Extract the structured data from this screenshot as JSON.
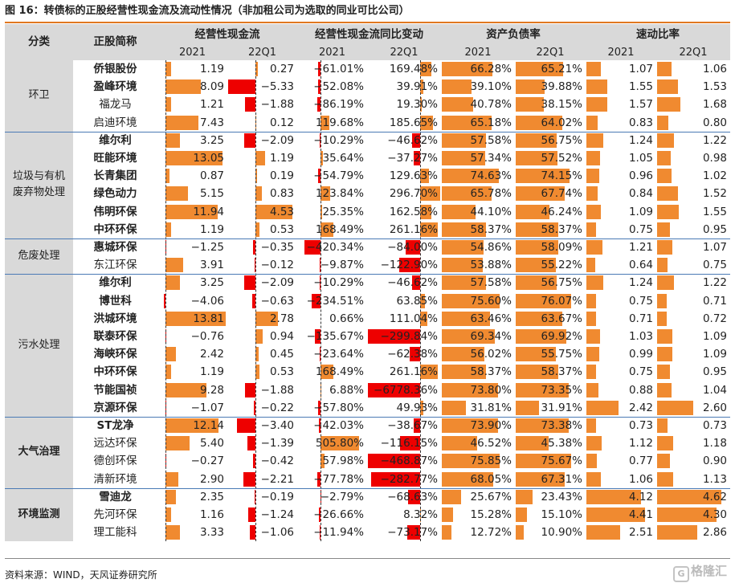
{
  "title": "图 16：转债标的正股经营性现金流及流动性情况（非加租公司为选取的同业可比公司）",
  "source": "资料来源：WIND，天风证券研究所",
  "watermark": "格隆汇",
  "watermark_icon": "G",
  "colors": {
    "positive_bar": "#f08a30",
    "negative_bar": "#ee0000",
    "header_bg": "#d9d9d9",
    "accent_line": "#e07820"
  },
  "headers": {
    "category": "分类",
    "company": "正股简称",
    "groups": [
      "经营性现金流",
      "经营性现金流同比变动",
      "资产负债率",
      "速动比率"
    ],
    "periods": [
      "2021",
      "22Q1",
      "2021",
      "22Q1",
      "2021",
      "22Q1",
      "2021",
      "22Q1"
    ]
  },
  "groups": [
    {
      "category": "环卫",
      "bold": false,
      "rows": [
        {
          "name": "侨银股份",
          "bold": true,
          "cf21": "1.19",
          "cf22": "0.27",
          "yoy21": "−61.01%",
          "yoy22": "169.48%",
          "dr21": "66.28%",
          "dr22": "65.21%",
          "qr21": "1.07",
          "qr22": "1.06"
        },
        {
          "name": "盈峰环境",
          "bold": true,
          "cf21": "8.09",
          "cf22": "−5.33",
          "yoy21": "−52.08%",
          "yoy22": "39.91%",
          "dr21": "39.10%",
          "dr22": "39.88%",
          "qr21": "1.55",
          "qr22": "1.53"
        },
        {
          "name": "福龙马",
          "bold": false,
          "cf21": "1.21",
          "cf22": "−1.88",
          "yoy21": "−86.19%",
          "yoy22": "19.30%",
          "dr21": "40.78%",
          "dr22": "38.15%",
          "qr21": "1.57",
          "qr22": "1.68"
        },
        {
          "name": "启迪环境",
          "bold": false,
          "cf21": "7.43",
          "cf22": "0.12",
          "yoy21": "119.68%",
          "yoy22": "185.65%",
          "dr21": "65.18%",
          "dr22": "64.02%",
          "qr21": "0.83",
          "qr22": "0.80"
        }
      ]
    },
    {
      "category": "垃圾与有机\n废弃物处理",
      "bold": false,
      "rows": [
        {
          "name": "维尔利",
          "bold": true,
          "cf21": "3.25",
          "cf22": "−2.09",
          "yoy21": "−10.29%",
          "yoy22": "−46.62%",
          "dr21": "57.58%",
          "dr22": "56.75%",
          "qr21": "1.24",
          "qr22": "1.22"
        },
        {
          "name": "旺能环境",
          "bold": true,
          "cf21": "13.05",
          "cf22": "1.19",
          "yoy21": "35.64%",
          "yoy22": "−37.27%",
          "dr21": "57.34%",
          "dr22": "57.52%",
          "qr21": "1.05",
          "qr22": "0.98"
        },
        {
          "name": "长青集团",
          "bold": true,
          "cf21": "0.87",
          "cf22": "0.19",
          "yoy21": "−54.79%",
          "yoy22": "129.63%",
          "dr21": "74.63%",
          "dr22": "74.15%",
          "qr21": "0.96",
          "qr22": "1.02"
        },
        {
          "name": "绿色动力",
          "bold": true,
          "cf21": "5.15",
          "cf22": "0.83",
          "yoy21": "123.84%",
          "yoy22": "296.70%",
          "dr21": "65.78%",
          "dr22": "67.74%",
          "qr21": "0.84",
          "qr22": "1.52"
        },
        {
          "name": "伟明环保",
          "bold": true,
          "cf21": "11.94",
          "cf22": "4.53",
          "yoy21": "25.35%",
          "yoy22": "162.58%",
          "dr21": "44.10%",
          "dr22": "46.24%",
          "qr21": "1.09",
          "qr22": "1.55"
        },
        {
          "name": "中环环保",
          "bold": true,
          "cf21": "1.19",
          "cf22": "0.53",
          "yoy21": "168.49%",
          "yoy22": "261.16%",
          "dr21": "58.37%",
          "dr22": "58.37%",
          "qr21": "0.75",
          "qr22": "0.95"
        }
      ]
    },
    {
      "category": "危废处理",
      "bold": false,
      "rows": [
        {
          "name": "惠城环保",
          "bold": true,
          "cf21": "−1.25",
          "cf22": "−0.35",
          "yoy21": "−420.34%",
          "yoy22": "−84.00%",
          "dr21": "54.86%",
          "dr22": "58.09%",
          "qr21": "1.21",
          "qr22": "1.07"
        },
        {
          "name": "东江环保",
          "bold": false,
          "cf21": "3.91",
          "cf22": "−0.12",
          "yoy21": "−9.87%",
          "yoy22": "−122.90%",
          "dr21": "53.88%",
          "dr22": "55.22%",
          "qr21": "0.64",
          "qr22": "0.75"
        }
      ]
    },
    {
      "category": "污水处理",
      "bold": false,
      "rows": [
        {
          "name": "维尔利",
          "bold": true,
          "cf21": "3.25",
          "cf22": "−2.09",
          "yoy21": "−10.29%",
          "yoy22": "−46.62%",
          "dr21": "57.58%",
          "dr22": "56.75%",
          "qr21": "1.24",
          "qr22": "1.22"
        },
        {
          "name": "博世科",
          "bold": true,
          "cf21": "−4.06",
          "cf22": "−0.63",
          "yoy21": "−234.51%",
          "yoy22": "63.85%",
          "dr21": "75.60%",
          "dr22": "76.07%",
          "qr21": "0.75",
          "qr22": "0.71"
        },
        {
          "name": "洪城环境",
          "bold": true,
          "cf21": "13.81",
          "cf22": "2.78",
          "yoy21": "0.66%",
          "yoy22": "111.04%",
          "dr21": "63.46%",
          "dr22": "63.67%",
          "qr21": "0.71",
          "qr22": "0.72"
        },
        {
          "name": "联泰环保",
          "bold": true,
          "cf21": "−0.76",
          "cf22": "0.94",
          "yoy21": "−135.67%",
          "yoy22": "−299.84%",
          "dr21": "69.34%",
          "dr22": "69.92%",
          "qr21": "1.03",
          "qr22": "1.09"
        },
        {
          "name": "海峡环保",
          "bold": true,
          "cf21": "2.42",
          "cf22": "0.45",
          "yoy21": "−23.64%",
          "yoy22": "−62.38%",
          "dr21": "56.02%",
          "dr22": "55.75%",
          "qr21": "0.99",
          "qr22": "1.09"
        },
        {
          "name": "中环环保",
          "bold": true,
          "cf21": "1.19",
          "cf22": "0.53",
          "yoy21": "168.49%",
          "yoy22": "261.16%",
          "dr21": "58.37%",
          "dr22": "58.37%",
          "qr21": "0.75",
          "qr22": "0.95"
        },
        {
          "name": "节能国祯",
          "bold": true,
          "cf21": "9.28",
          "cf22": "−1.88",
          "yoy21": "6.88%",
          "yoy22": "−6778.36%",
          "dr21": "73.80%",
          "dr22": "73.35%",
          "qr21": "0.88",
          "qr22": "1.04"
        },
        {
          "name": "京源环保",
          "bold": true,
          "cf21": "−1.07",
          "cf22": "−0.22",
          "yoy21": "−57.80%",
          "yoy22": "49.93%",
          "dr21": "31.81%",
          "dr22": "31.91%",
          "qr21": "2.42",
          "qr22": "2.60"
        }
      ]
    },
    {
      "category": "大气治理",
      "bold": true,
      "rows": [
        {
          "name": "ST龙净",
          "bold": true,
          "cf21": "12.14",
          "cf22": "−3.40",
          "yoy21": "−42.03%",
          "yoy22": "−38.67%",
          "dr21": "73.90%",
          "dr22": "73.38%",
          "qr21": "0.73",
          "qr22": "0.73"
        },
        {
          "name": "远达环保",
          "bold": false,
          "cf21": "5.40",
          "cf22": "−1.39",
          "yoy21": "505.80%",
          "yoy22": "−116.15%",
          "dr21": "46.52%",
          "dr22": "45.38%",
          "qr21": "1.12",
          "qr22": "1.18"
        },
        {
          "name": "德创环保",
          "bold": false,
          "cf21": "−0.27",
          "cf22": "−0.42",
          "yoy21": "57.98%",
          "yoy22": "−468.87%",
          "dr21": "75.85%",
          "dr22": "75.67%",
          "qr21": "0.77",
          "qr22": "0.90"
        },
        {
          "name": "清新环境",
          "bold": false,
          "cf21": "2.90",
          "cf22": "−2.21",
          "yoy21": "−77.78%",
          "yoy22": "−282.77%",
          "dr21": "68.05%",
          "dr22": "67.31%",
          "qr21": "1.06",
          "qr22": "1.13"
        }
      ]
    },
    {
      "category": "环境监测",
      "bold": true,
      "rows": [
        {
          "name": "雪迪龙",
          "bold": true,
          "cf21": "2.35",
          "cf22": "−0.19",
          "yoy21": "−2.79%",
          "yoy22": "−68.63%",
          "dr21": "25.67%",
          "dr22": "23.43%",
          "qr21": "4.12",
          "qr22": "4.62"
        },
        {
          "name": "先河环保",
          "bold": false,
          "cf21": "1.16",
          "cf22": "−1.24",
          "yoy21": "−26.66%",
          "yoy22": "8.32%",
          "dr21": "15.28%",
          "dr22": "15.10%",
          "qr21": "4.41",
          "qr22": "4.30"
        },
        {
          "name": "理工能科",
          "bold": false,
          "cf21": "3.33",
          "cf22": "−1.06",
          "yoy21": "−11.94%",
          "yoy22": "−73.17%",
          "dr21": "12.72%",
          "dr22": "10.90%",
          "qr21": "2.51",
          "qr22": "2.86"
        }
      ]
    }
  ]
}
